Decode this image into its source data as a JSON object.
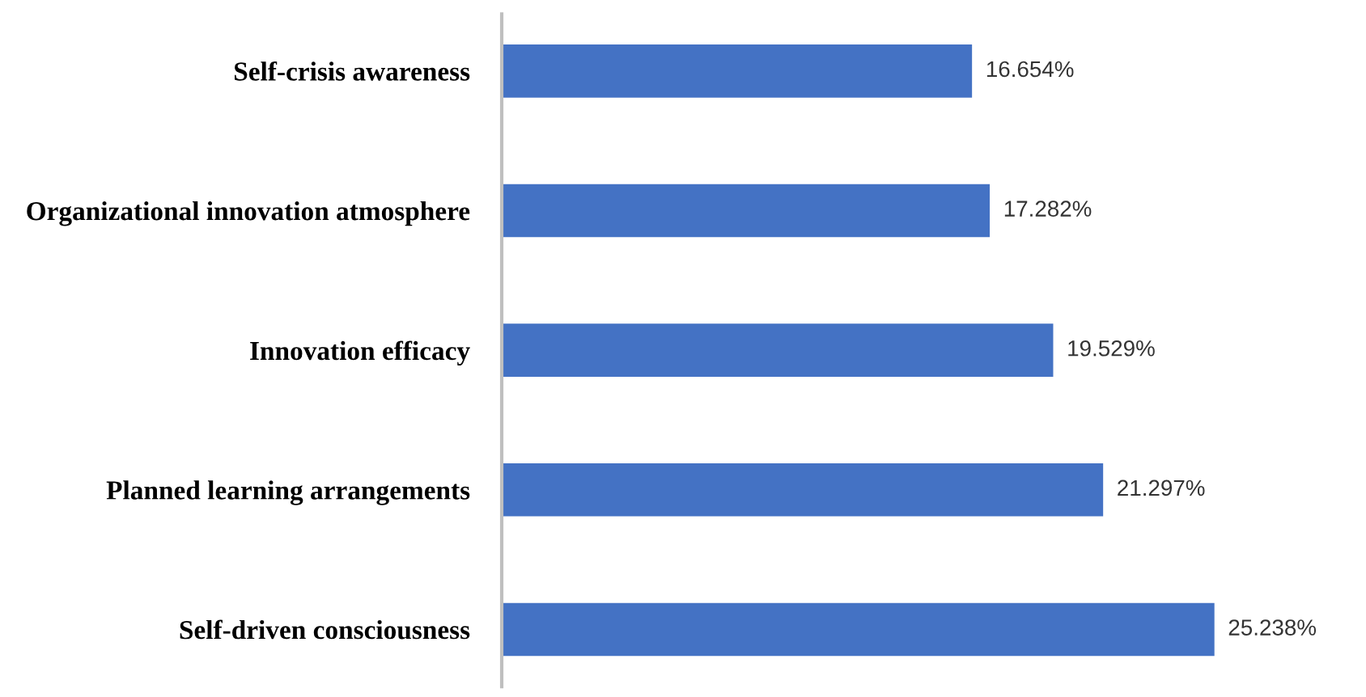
{
  "chart_data": {
    "type": "bar",
    "orientation": "horizontal",
    "categories": [
      "Self-crisis awareness",
      "Organizational innovation atmosphere",
      "Innovation efficacy",
      "Planned learning arrangements",
      "Self-driven consciousness"
    ],
    "values": [
      16.654,
      17.282,
      19.529,
      21.297,
      25.238
    ],
    "value_labels": [
      "16.654%",
      "17.282%",
      "19.529%",
      "21.297%",
      "25.238%"
    ],
    "color": "#4472c4",
    "grid": false,
    "legend": false
  }
}
